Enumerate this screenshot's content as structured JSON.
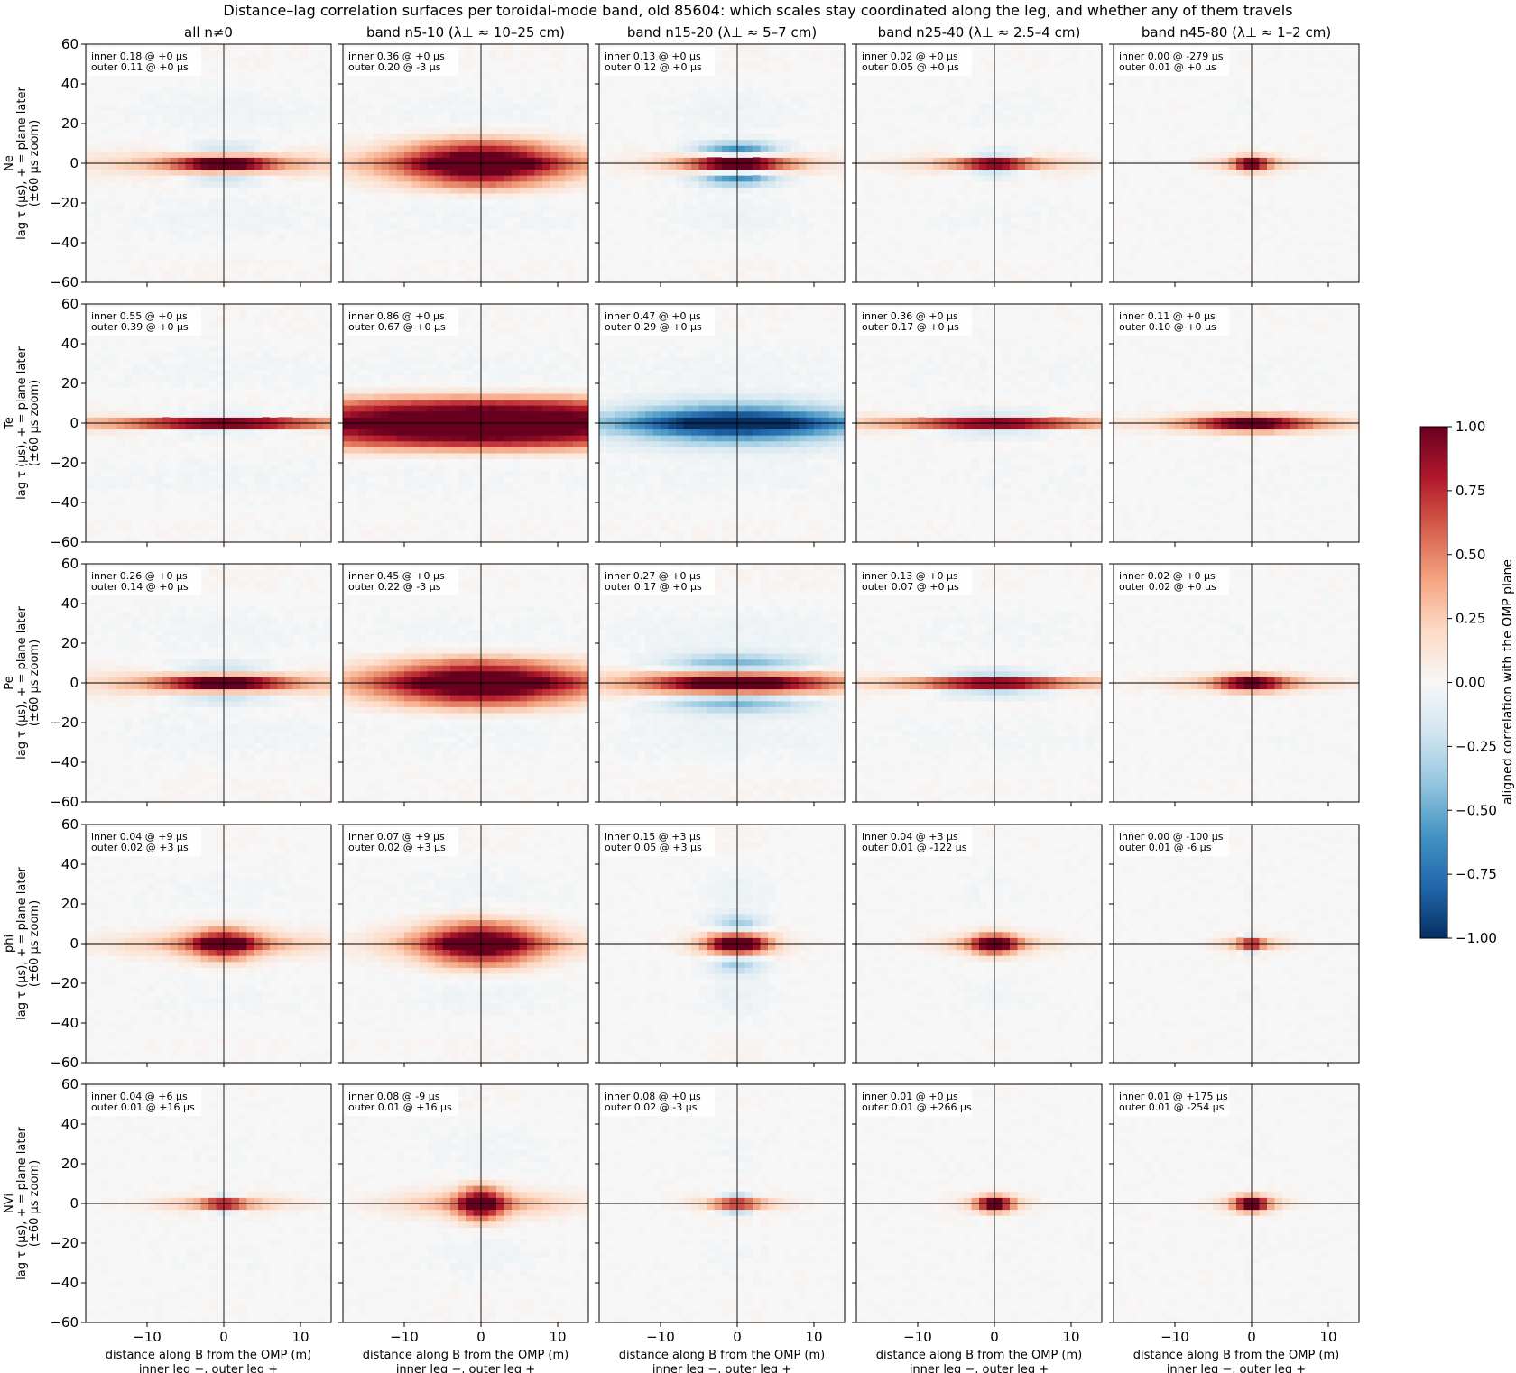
{
  "title": "Distance–lag correlation surfaces per toroidal-mode band, old 85604: which scales stay coordinated along the leg, and whether any of them travels",
  "columns": [
    "all n≠0",
    "band n5-10 (λ⊥ ≈ 10–25 cm)",
    "band n15-20 (λ⊥ ≈ 5–7 cm)",
    "band n25-40 (λ⊥ ≈ 2.5–4 cm)",
    "band n45-80 (λ⊥ ≈ 1–2 cm)"
  ],
  "rows": [
    {
      "name": "Ne",
      "ylabel": "lag τ (μs), + = plane later",
      "ylabel2": "(±60 μs zoom)"
    },
    {
      "name": "Te",
      "ylabel": "lag τ (μs), + = plane later",
      "ylabel2": "(±60 μs zoom)"
    },
    {
      "name": "Pe",
      "ylabel": "lag τ (μs), + = plane later",
      "ylabel2": "(±60 μs zoom)"
    },
    {
      "name": "phi",
      "ylabel": "lag τ (μs), + = plane later",
      "ylabel2": "(±60 μs zoom)"
    },
    {
      "name": "NVi",
      "ylabel": "lag τ (μs), + = plane later",
      "ylabel2": "(±60 μs zoom)"
    }
  ],
  "xlabel": "distance along B from the OMP (m)",
  "xlabel2": "inner leg −, outer leg +",
  "colorbar": {
    "label": "aligned correlation with the OMP plane",
    "ticks": [
      "1.00",
      "0.75",
      "0.50",
      "0.25",
      "0.00",
      "−0.25",
      "−0.50",
      "−0.75",
      "−1.00"
    ],
    "range": [
      -1,
      1
    ],
    "colormap": "RdBu_r",
    "colors": [
      "#053061",
      "#2166ac",
      "#4393c3",
      "#92c5de",
      "#d1e5f0",
      "#f7f7f7",
      "#fddbc7",
      "#f4a582",
      "#d6604d",
      "#b2182b",
      "#67001f"
    ]
  },
  "chart_data": {
    "type": "heatmap",
    "grid": "5x5 small multiples",
    "x_range": [
      -18,
      14
    ],
    "y_range": [
      -60,
      60
    ],
    "x_ticks": [
      -10,
      0,
      10
    ],
    "y_ticks": [
      60,
      40,
      20,
      0,
      -20,
      -40,
      -60
    ],
    "x_tick_labels": [
      "−10",
      "0",
      "10"
    ],
    "y_tick_labels": [
      "60",
      "40",
      "20",
      "0",
      "−20",
      "−40",
      "−60"
    ],
    "panels": [
      [
        {
          "inner": "inner 0.18 @ +0 μs",
          "outer": "outer 0.11 @ +0 μs",
          "peak": 0.9,
          "xw": 4,
          "yw": 3,
          "side": -0.35,
          "ext": 12,
          "ring": 0.35
        },
        {
          "inner": "inner 0.36 @ +0 μs",
          "outer": "outer 0.20 @ -3 μs",
          "peak": 0.95,
          "xw": 7,
          "yw": 4,
          "side": 0.5,
          "ext": 16,
          "ring": 0.25
        },
        {
          "inner": "inner 0.13 @ +0 μs",
          "outer": "outer 0.12 @ +0 μs",
          "peak": 0.95,
          "xw": 4,
          "yw": 3,
          "side": -0.8,
          "ext": 8,
          "ring": 0.4
        },
        {
          "inner": "inner 0.02 @ +0 μs",
          "outer": "outer 0.05 @ +0 μs",
          "peak": 0.9,
          "xw": 3,
          "yw": 2,
          "side": -0.4,
          "ext": 8,
          "ring": 0.2
        },
        {
          "inner": "inner 0.00 @ -279 μs",
          "outer": "outer 0.01 @ +0 μs",
          "peak": 0.9,
          "xw": 1.5,
          "yw": 1.5,
          "side": 0.2,
          "ext": 4,
          "ring": 0.1
        }
      ],
      [
        {
          "inner": "inner 0.55 @ +0 μs",
          "outer": "outer 0.39 @ +0 μs",
          "peak": 0.9,
          "xw": 8,
          "yw": 2,
          "side": -0.3,
          "ext": 20,
          "ring": 0.25
        },
        {
          "inner": "inner 0.86 @ +0 μs",
          "outer": "outer 0.67 @ +0 μs",
          "peak": 0.95,
          "xw": 20,
          "yw": 4,
          "side": 0.7,
          "ext": 30,
          "ring": 0.2
        },
        {
          "inner": "inner 0.47 @ +0 μs",
          "outer": "outer 0.29 @ +0 μs",
          "peak": -0.95,
          "xw": 10,
          "yw": 4,
          "side": -0.3,
          "ext": 18,
          "ring": 0.3
        },
        {
          "inner": "inner 0.36 @ +0 μs",
          "outer": "outer 0.17 @ +0 μs",
          "peak": 0.9,
          "xw": 7,
          "yw": 2,
          "side": -0.35,
          "ext": 18,
          "ring": 0.15
        },
        {
          "inner": "inner 0.11 @ +0 μs",
          "outer": "outer 0.10 @ +0 μs",
          "peak": 0.95,
          "xw": 5,
          "yw": 1.5,
          "side": 0.3,
          "ext": 12,
          "ring": 0.1
        }
      ],
      [
        {
          "inner": "inner 0.26 @ +0 μs",
          "outer": "outer 0.14 @ +0 μs",
          "peak": 0.9,
          "xw": 5,
          "yw": 3,
          "side": -0.35,
          "ext": 14,
          "ring": 0.3
        },
        {
          "inner": "inner 0.45 @ +0 μs",
          "outer": "outer 0.22 @ -3 μs",
          "peak": 0.95,
          "xw": 9,
          "yw": 4,
          "side": 0.5,
          "ext": 18,
          "ring": 0.2
        },
        {
          "inner": "inner 0.27 @ +0 μs",
          "outer": "outer 0.17 @ +0 μs",
          "peak": 0.95,
          "xw": 7,
          "yw": 4,
          "side": -0.6,
          "ext": 16,
          "ring": 0.4
        },
        {
          "inner": "inner 0.13 @ +0 μs",
          "outer": "outer 0.07 @ +0 μs",
          "peak": 0.9,
          "xw": 6,
          "yw": 2,
          "side": -0.45,
          "ext": 14,
          "ring": 0.2
        },
        {
          "inner": "inner 0.02 @ +0 μs",
          "outer": "outer 0.02 @ +0 μs",
          "peak": 0.9,
          "xw": 3,
          "yw": 1.5,
          "side": 0.3,
          "ext": 8,
          "ring": 0.1
        }
      ],
      [
        {
          "inner": "inner 0.04 @ +9 μs",
          "outer": "outer 0.02 @ +3 μs",
          "peak": 0.9,
          "xw": 3,
          "yw": 3,
          "side": 0.3,
          "ext": 10,
          "ring": 0.2
        },
        {
          "inner": "inner 0.07 @ +9 μs",
          "outer": "outer 0.02 @ +3 μs",
          "peak": 0.9,
          "xw": 5,
          "yw": 4,
          "side": 0.4,
          "ext": 10,
          "ring": 0.3
        },
        {
          "inner": "inner 0.15 @ +3 μs",
          "outer": "outer 0.05 @ +3 μs",
          "peak": 0.95,
          "xw": 2.5,
          "yw": 4,
          "side": -0.5,
          "ext": 4,
          "ring": 0.5
        },
        {
          "inner": "inner 0.04 @ +3 μs",
          "outer": "outer 0.01 @ -122 μs",
          "peak": 0.9,
          "xw": 2,
          "yw": 2,
          "side": 0.3,
          "ext": 5,
          "ring": 0.2
        },
        {
          "inner": "inner 0.00 @ -100 μs",
          "outer": "outer 0.01 @ -6 μs",
          "peak": 0.9,
          "xw": 1,
          "yw": 1.5,
          "side": -0.3,
          "ext": 3,
          "ring": 0.15
        }
      ],
      [
        {
          "inner": "inner 0.04 @ +6 μs",
          "outer": "outer 0.01 @ +16 μs",
          "peak": 0.95,
          "xw": 1.8,
          "yw": 1.5,
          "side": -0.3,
          "ext": 6,
          "ring": 0.15
        },
        {
          "inner": "inner 0.08 @ -9 μs",
          "outer": "outer 0.01 @ +16 μs",
          "peak": 0.95,
          "xw": 2,
          "yw": 3,
          "side": 0.4,
          "ext": 8,
          "ring": 0.3
        },
        {
          "inner": "inner 0.08 @ +0 μs",
          "outer": "outer 0.02 @ -3 μs",
          "peak": 0.95,
          "xw": 1.8,
          "yw": 1.5,
          "side": -0.5,
          "ext": 4,
          "ring": 0.2
        },
        {
          "inner": "inner 0.01 @ +0 μs",
          "outer": "outer 0.01 @ +266 μs",
          "peak": 0.95,
          "xw": 1.5,
          "yw": 1.5,
          "side": 0.3,
          "ext": 3,
          "ring": 0.1
        },
        {
          "inner": "inner 0.01 @ +175 μs",
          "outer": "outer 0.01 @ -254 μs",
          "peak": 0.95,
          "xw": 1.5,
          "yw": 1.5,
          "side": 0.3,
          "ext": 3,
          "ring": 0.1
        }
      ]
    ]
  }
}
